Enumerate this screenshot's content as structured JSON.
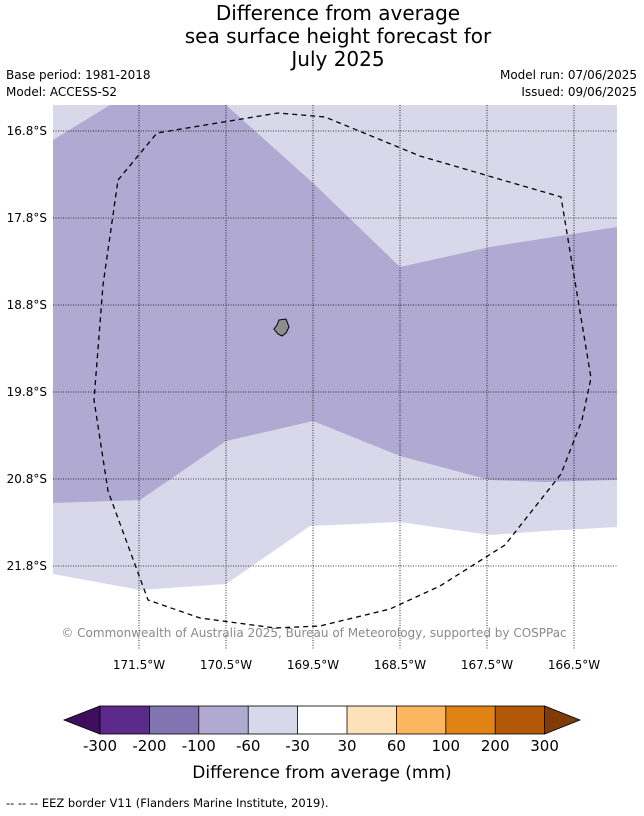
{
  "title": {
    "line1": "Difference from average",
    "line2": "sea surface height forecast for",
    "line3": "July 2025"
  },
  "meta": {
    "base_period": "Base period: 1981-2018",
    "model": "Model: ACCESS-S2",
    "model_run": "Model run: 07/06/2025",
    "issued": "Issued: 09/06/2025"
  },
  "map": {
    "lat_labels": [
      "16.8°S",
      "17.8°S",
      "18.8°S",
      "19.8°S",
      "20.8°S",
      "21.8°S"
    ],
    "lon_labels": [
      "171.5°W",
      "170.5°W",
      "169.5°W",
      "168.5°W",
      "167.5°W",
      "166.5°W"
    ],
    "copyright": "© Commonwealth of Australia 2025, Bureau of Meteorology, supported by COSPPac"
  },
  "colorbar": {
    "tick_labels": [
      "-300",
      "-200",
      "-100",
      "-60",
      "-30",
      "30",
      "60",
      "100",
      "200",
      "300"
    ],
    "colors": [
      "#5b2a8b",
      "#8274b0",
      "#b0a9d2",
      "#d9d8ea",
      "#ffffff",
      "#fde2b9",
      "#fbb65f",
      "#e08214",
      "#b35806"
    ],
    "under_color": "#3f0f5e",
    "over_color": "#7f3b08",
    "label": "Difference from average (mm)"
  },
  "footnote": "--  --  -- EEZ border V11 (Flanders Marine Institute, 2019)."
}
